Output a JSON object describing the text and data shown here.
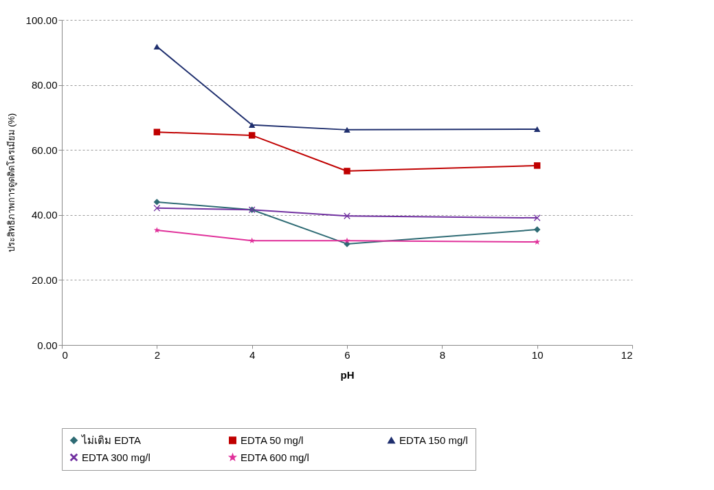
{
  "chart_data": {
    "type": "line",
    "xlabel": "pH",
    "ylabel": "ประสิทธิภาพการดูดติดโครเมียม (%)",
    "xlim": [
      0,
      12
    ],
    "xticks": [
      0,
      2,
      4,
      6,
      8,
      10,
      12
    ],
    "ylim": [
      0,
      100
    ],
    "yticks": [
      {
        "value": 0,
        "label": "0.00"
      },
      {
        "value": 20,
        "label": "20.00"
      },
      {
        "value": 40,
        "label": "40.00"
      },
      {
        "value": 60,
        "label": "60.00"
      },
      {
        "value": 80,
        "label": "80.00"
      },
      {
        "value": 100,
        "label": "100.00"
      }
    ],
    "grid": "y",
    "legend": "bottom",
    "line_style": "solid",
    "x": [
      2,
      4,
      6,
      10
    ],
    "series": [
      {
        "name": "ไม่เติม EDTA",
        "color": "#2e6b74",
        "marker": "diamond",
        "values": [
          44.0,
          41.6,
          31.1,
          35.5
        ]
      },
      {
        "name": "EDTA 50 mg/l",
        "color": "#c00000",
        "marker": "square",
        "values": [
          65.5,
          64.5,
          53.5,
          55.2
        ]
      },
      {
        "name": "EDTA 150 mg/l",
        "color": "#1f2f6e",
        "marker": "triangle",
        "values": [
          91.8,
          67.7,
          66.2,
          66.4
        ]
      },
      {
        "name": "EDTA 300 mg/l",
        "color": "#7030a0",
        "marker": "cross",
        "values": [
          42.1,
          41.6,
          39.7,
          39.1
        ]
      },
      {
        "name": "EDTA 600 mg/l",
        "color": "#e0309a",
        "marker": "star",
        "values": [
          35.3,
          32.1,
          32.1,
          31.7
        ]
      }
    ]
  }
}
